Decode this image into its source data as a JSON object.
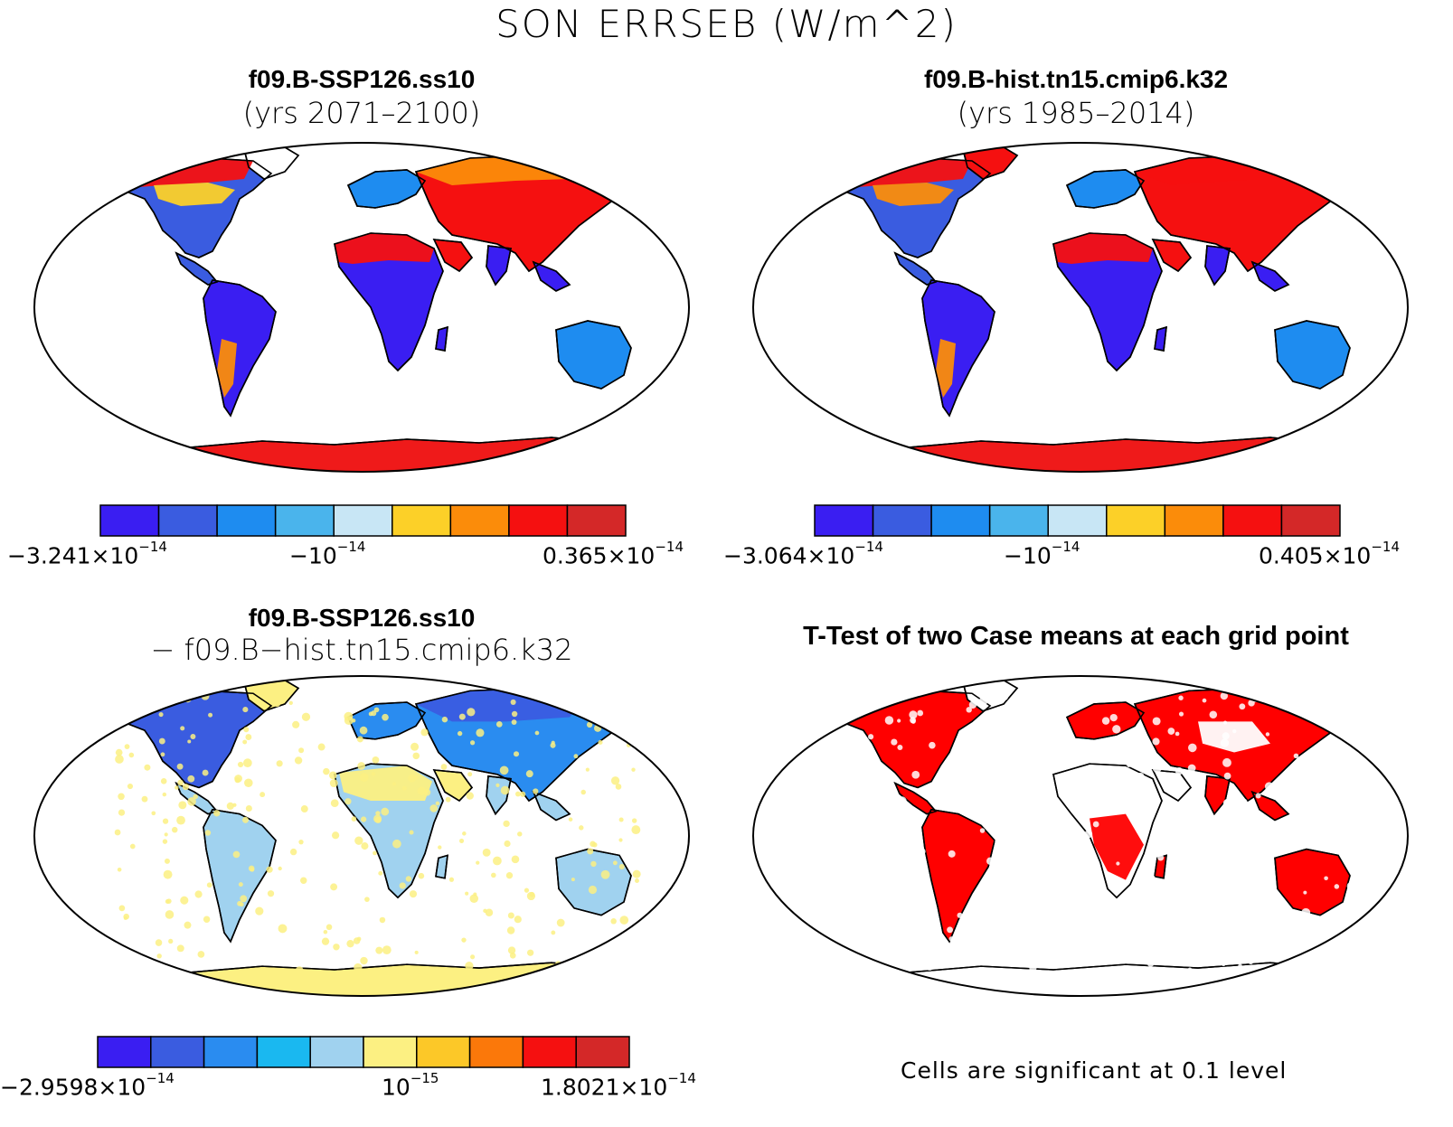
{
  "title": "SON ERRSEB (W/m^2)",
  "colors": {
    "land_base": [
      "#ef1a1a",
      "#ef1a1a",
      "#a8d3ef",
      "#ff0000"
    ],
    "ocean": "#ffffff",
    "coast": "#000000"
  },
  "panels": [
    {
      "id": "tl",
      "title_line1": "f09.B-SSP126.ss10",
      "title_line2": "(yrs 2071–2100)",
      "colorbar": {
        "colors": [
          "#3a1ef2",
          "#3a5ce0",
          "#1e8cf0",
          "#4ab4ec",
          "#c8e6f5",
          "#fcd028",
          "#fb8c0a",
          "#f51010",
          "#d42828"
        ],
        "label_left": {
          "base": "−3.241×10",
          "exp": "−14"
        },
        "label_mid": {
          "base": "−10",
          "exp": "−14"
        },
        "label_right": {
          "base": "0.365×10",
          "exp": "−14"
        }
      }
    },
    {
      "id": "tr",
      "title_line1": "f09.B-hist.tn15.cmip6.k32",
      "title_line2": "(yrs 1985–2014)",
      "colorbar": {
        "colors": [
          "#3a1ef2",
          "#3a5ce0",
          "#1e8cf0",
          "#4ab4ec",
          "#c8e6f5",
          "#fcd028",
          "#fb8c0a",
          "#f51010",
          "#d42828"
        ],
        "label_left": {
          "base": "−3.064×10",
          "exp": "−14"
        },
        "label_mid": {
          "base": "−10",
          "exp": "−14"
        },
        "label_right": {
          "base": "0.405×10",
          "exp": "−14"
        }
      }
    },
    {
      "id": "bl",
      "title_line1": "f09.B-SSP126.ss10",
      "title_line2": "− f09.B−hist.tn15.cmip6.k32",
      "colorbar": {
        "colors": [
          "#3a1ef2",
          "#3a5ce0",
          "#2a8cf0",
          "#1ab8f0",
          "#a0d2ef",
          "#fcf082",
          "#fcc828",
          "#fb780a",
          "#f51010",
          "#d42828"
        ],
        "label_left": {
          "base": "−2.9598×10",
          "exp": "−14"
        },
        "label_mid": {
          "base": "10",
          "exp": "−15"
        },
        "label_right": {
          "base": "1.8021×10",
          "exp": "−14"
        }
      }
    },
    {
      "id": "br",
      "title_line1": "T-Test of two Case means at each grid point",
      "footnote": "Cells are significant at 0.1 level"
    }
  ]
}
